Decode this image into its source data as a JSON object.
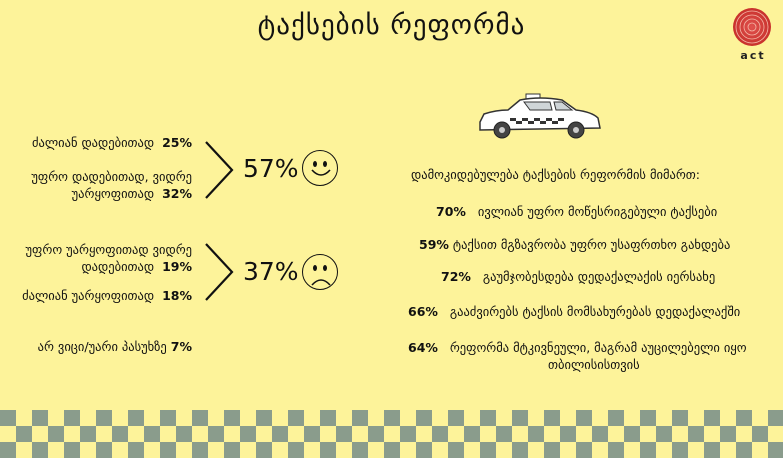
{
  "title": "ტაქსების რეფორმა",
  "logo": {
    "text": "act"
  },
  "left": {
    "group_positive": {
      "items": [
        {
          "label": "ძალიან დადებითად",
          "value": "25%"
        },
        {
          "label": "უფრო დადებითად, ვიდრე უარყოფითად",
          "value": "32%"
        }
      ],
      "total": "57%",
      "face": "smiley-face-icon"
    },
    "group_negative": {
      "items": [
        {
          "label": "უფრო უარყოფითად ვიდრე დადებითად",
          "value": "19%"
        },
        {
          "label": "ძალიან უარყოფითად",
          "value": "18%"
        }
      ],
      "total": "37%",
      "face": "sad-face-icon"
    },
    "no_answer": {
      "label": "არ ვიცი/უარი პასუხზე",
      "value": "7%"
    }
  },
  "right": {
    "heading": "დამოკიდებულება  ტაქსების რეფორმის მიმართ:",
    "items": [
      {
        "value": "70%",
        "text": "ივლიან უფრო მოწესრიგებული ტაქსები"
      },
      {
        "value": "59%",
        "text": "ტაქსით  მგზავრობა უფრო უსაფრთხო გახდება"
      },
      {
        "value": "72%",
        "text": "გაუმჯობესდება დედაქალაქის იერსახე"
      },
      {
        "value": "66%",
        "text": "გააძვირებს ტაქსის მომსახურებას დედაქალაქში"
      },
      {
        "value": "64%",
        "text": "რეფორმა მტკივნეული, მაგრამ აუცილებელი იყო",
        "text2": "თბილისისთვის"
      }
    ]
  },
  "colors": {
    "background": "#fdf39a",
    "checker": "#8a9c8c",
    "logo": "#c8312c"
  }
}
